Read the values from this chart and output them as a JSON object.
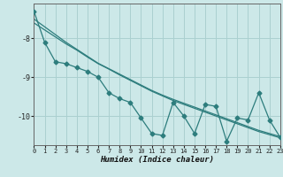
{
  "x": [
    0,
    1,
    2,
    3,
    4,
    5,
    6,
    7,
    8,
    9,
    10,
    11,
    12,
    13,
    14,
    15,
    16,
    17,
    18,
    19,
    20,
    21,
    22,
    23
  ],
  "y_main": [
    -7.3,
    -8.1,
    -8.6,
    -8.65,
    -8.75,
    -8.85,
    -9.0,
    -9.4,
    -9.55,
    -9.65,
    -10.05,
    -10.45,
    -10.5,
    -9.65,
    -10.0,
    -10.45,
    -9.7,
    -9.75,
    -10.65,
    -10.05,
    -10.1,
    -9.4,
    -10.1,
    -10.55
  ],
  "y_trend1": [
    -7.5,
    -7.7,
    -7.9,
    -8.1,
    -8.28,
    -8.46,
    -8.64,
    -8.78,
    -8.92,
    -9.06,
    -9.2,
    -9.34,
    -9.46,
    -9.57,
    -9.67,
    -9.77,
    -9.87,
    -9.97,
    -10.07,
    -10.17,
    -10.27,
    -10.37,
    -10.45,
    -10.53
  ],
  "y_trend2": [
    -7.6,
    -7.78,
    -7.96,
    -8.14,
    -8.3,
    -8.48,
    -8.65,
    -8.79,
    -8.94,
    -9.08,
    -9.22,
    -9.36,
    -9.48,
    -9.6,
    -9.7,
    -9.8,
    -9.9,
    -10.0,
    -10.1,
    -10.2,
    -10.3,
    -10.4,
    -10.48,
    -10.56
  ],
  "line_color": "#2d7d7d",
  "bg_color": "#cce8e8",
  "grid_color": "#aad0d0",
  "xlabel": "Humidex (Indice chaleur)",
  "ylim": [
    -10.75,
    -7.1
  ],
  "xlim": [
    0,
    23
  ],
  "yticks": [
    -10,
    -9,
    -8
  ],
  "xticks": [
    0,
    1,
    2,
    3,
    4,
    5,
    6,
    7,
    8,
    9,
    10,
    11,
    12,
    13,
    14,
    15,
    16,
    17,
    18,
    19,
    20,
    21,
    22,
    23
  ],
  "marker": "D",
  "markersize": 2.5,
  "linewidth": 0.9,
  "title_fontsize": 7,
  "xlabel_fontsize": 6.5,
  "ytick_fontsize": 6,
  "xtick_fontsize": 5
}
